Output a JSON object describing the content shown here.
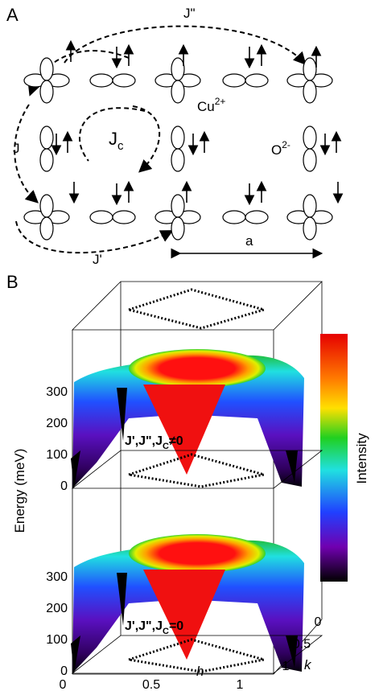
{
  "panel_a": {
    "label": "A",
    "j_second": "J\"",
    "cu": "Cu",
    "cu_charge": "2+",
    "jc": "J",
    "jc_sub": "c",
    "j": "J",
    "o": "O",
    "o_charge": "2-",
    "j_prime": "J'",
    "a": "a"
  },
  "panel_b": {
    "label": "B",
    "y_label": "Energy (meV)",
    "colorbar_label": "Intensity",
    "upper": {
      "yticks": [
        300,
        200,
        100,
        0
      ],
      "caption": {
        "text": "J',J\",J",
        "sub": "C",
        "relation": "≠0"
      }
    },
    "lower": {
      "yticks": [
        300,
        200,
        100,
        0
      ],
      "caption": {
        "text": "J',J\",J",
        "sub": "C",
        "relation": "=0"
      }
    },
    "x_label": "h",
    "xticks": [
      0,
      0.5,
      1
    ],
    "k_label": "k",
    "kticks": [
      0,
      0.5,
      1
    ]
  }
}
